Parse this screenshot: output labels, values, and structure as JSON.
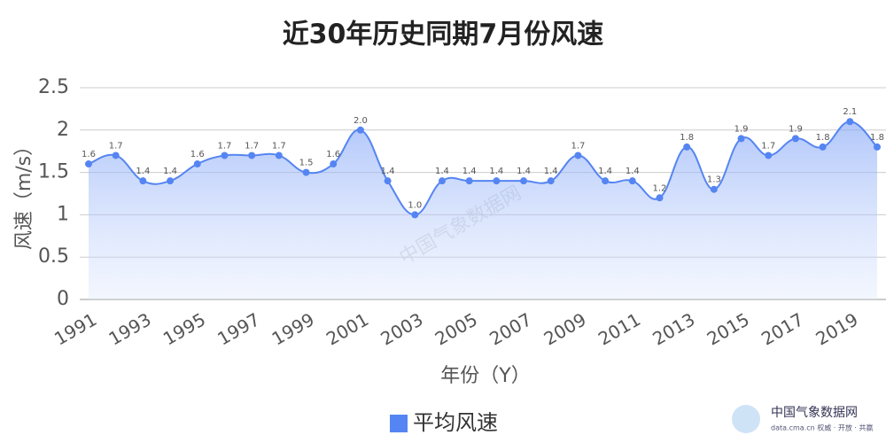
{
  "chart_data": {
    "type": "line",
    "title": "近30年历史同期7月份风速",
    "x_label": "年份（Y）",
    "y_label": "风速（m/s）",
    "categories": [
      "1991",
      null,
      "1993",
      null,
      "1995",
      null,
      "1997",
      null,
      "1999",
      null,
      "2001",
      null,
      "2003",
      null,
      "2005",
      null,
      "2007",
      null,
      "2009",
      null,
      "2011",
      null,
      "2013",
      null,
      "2015",
      null,
      "2017",
      null,
      "2019",
      null
    ],
    "series": [
      {
        "name": "平均风速",
        "color": "#5585f2",
        "values": [
          1.6,
          1.7,
          1.4,
          1.4,
          1.6,
          1.7,
          1.7,
          1.7,
          1.5,
          1.6,
          2.0,
          1.4,
          1.0,
          1.4,
          1.4,
          1.4,
          1.4,
          1.4,
          1.7,
          1.4,
          1.4,
          1.2,
          1.8,
          1.3,
          1.9,
          1.7,
          1.9,
          1.8,
          2.1,
          1.8
        ],
        "value_labels": [
          "1.6",
          "1.7",
          "1.4",
          "1.4",
          "1.6",
          "1.7",
          "1.7",
          "1.7",
          "1.5",
          "1.6",
          "2.0",
          "1.4",
          "1.0",
          "1.4",
          "1.4",
          "1.4",
          "1.4",
          "1.4",
          "1.7",
          "1.4",
          "1.4",
          "1.2",
          "1.8",
          "1.3",
          "1.9",
          "1.7",
          "1.9",
          "1.8",
          "2.1",
          "1.8"
        ]
      }
    ],
    "ylim": [
      0,
      2.5
    ],
    "yticks": [
      0,
      0.5,
      1,
      1.5,
      2,
      2.5
    ],
    "grid": true,
    "legend": "bottom",
    "watermark": "中国气象数据网",
    "logo": {
      "name": "中国气象数据网",
      "tagline": "data.cma.cn 权威 · 开放 · 共赢"
    }
  }
}
